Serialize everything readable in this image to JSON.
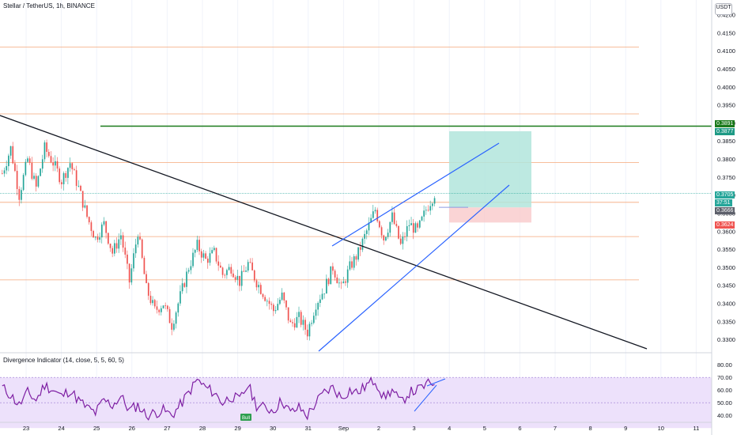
{
  "header": {
    "title": "Stellar / TetherUS, 1h, BINANCE",
    "currency": "USDT"
  },
  "indicator": {
    "title": "Divergence Indicator (14, close, 5, 5, 60, 5)",
    "bull_label": "Bull",
    "ticks": [
      "80.00",
      "70.00",
      "60.00",
      "50.00",
      "40.00"
    ],
    "band_color": "#ede1fb",
    "line_color": "#7e1fa3"
  },
  "price_axis": {
    "ticks": [
      "0.4200",
      "0.4150",
      "0.4100",
      "0.4050",
      "0.4000",
      "0.3950",
      "0.3900",
      "0.3850",
      "0.3800",
      "0.3750",
      "0.3700",
      "0.3650",
      "0.3600",
      "0.3550",
      "0.3500",
      "0.3450",
      "0.3400",
      "0.3350",
      "0.3300"
    ]
  },
  "price_tags": {
    "target_top": {
      "text": "0.3891",
      "color": "#1b7a1b"
    },
    "target": {
      "text": "0.3877",
      "color": "#1e9a85"
    },
    "last": {
      "text": "0.3705",
      "color": "#26a69a"
    },
    "countdown": {
      "text": "37:51",
      "color": "#26a69a"
    },
    "entry": {
      "text": "0.3666",
      "color": "#5d606b"
    },
    "stop": {
      "text": "0.3624",
      "color": "#ef5350"
    }
  },
  "time_axis": {
    "ticks": [
      "23",
      "24",
      "25",
      "26",
      "27",
      "28",
      "29",
      "30",
      "31",
      "Sep",
      "2",
      "3",
      "4",
      "5",
      "6",
      "7",
      "8",
      "9",
      "10",
      "11"
    ]
  },
  "chart_data": {
    "type": "candlestick",
    "symbol": "Stellar / TetherUS",
    "interval": "1h",
    "exchange": "BINANCE",
    "ylim": [
      0.3285,
      0.421
    ],
    "horizontal_levels": [
      0.411,
      0.3925,
      0.379,
      0.368,
      0.3585,
      0.3465
    ],
    "key_level": 0.3891,
    "last_price": 0.3705,
    "long_position": {
      "entry": 0.3666,
      "target": 0.3877,
      "stop": 0.3624
    },
    "price_path": [
      [
        0,
        0.376
      ],
      [
        4,
        0.383
      ],
      [
        8,
        0.37
      ],
      [
        12,
        0.38
      ],
      [
        16,
        0.372
      ],
      [
        20,
        0.383
      ],
      [
        24,
        0.379
      ],
      [
        28,
        0.374
      ],
      [
        32,
        0.379
      ],
      [
        36,
        0.372
      ],
      [
        40,
        0.364
      ],
      [
        44,
        0.358
      ],
      [
        48,
        0.362
      ],
      [
        52,
        0.354
      ],
      [
        56,
        0.359
      ],
      [
        60,
        0.346
      ],
      [
        64,
        0.36
      ],
      [
        68,
        0.344
      ],
      [
        72,
        0.338
      ],
      [
        76,
        0.34
      ],
      [
        80,
        0.334
      ],
      [
        84,
        0.342
      ],
      [
        88,
        0.35
      ],
      [
        92,
        0.356
      ],
      [
        96,
        0.352
      ],
      [
        100,
        0.354
      ],
      [
        104,
        0.348
      ],
      [
        108,
        0.35
      ],
      [
        112,
        0.346
      ],
      [
        116,
        0.351
      ],
      [
        120,
        0.346
      ],
      [
        124,
        0.342
      ],
      [
        128,
        0.338
      ],
      [
        132,
        0.342
      ],
      [
        136,
        0.334
      ],
      [
        140,
        0.336
      ],
      [
        144,
        0.332
      ],
      [
        148,
        0.34
      ],
      [
        152,
        0.344
      ],
      [
        156,
        0.35
      ],
      [
        160,
        0.344
      ],
      [
        164,
        0.35
      ],
      [
        168,
        0.354
      ],
      [
        172,
        0.36
      ],
      [
        176,
        0.366
      ],
      [
        180,
        0.358
      ],
      [
        184,
        0.364
      ],
      [
        188,
        0.356
      ],
      [
        192,
        0.362
      ],
      [
        196,
        0.36
      ],
      [
        200,
        0.366
      ],
      [
        204,
        0.3705
      ]
    ],
    "indicator_series": [
      [
        0,
        62
      ],
      [
        4,
        56
      ],
      [
        8,
        48
      ],
      [
        12,
        58
      ],
      [
        16,
        52
      ],
      [
        20,
        64
      ],
      [
        24,
        60
      ],
      [
        28,
        55
      ],
      [
        32,
        60
      ],
      [
        36,
        52
      ],
      [
        40,
        46
      ],
      [
        44,
        42
      ],
      [
        48,
        52
      ],
      [
        52,
        48
      ],
      [
        56,
        55
      ],
      [
        60,
        44
      ],
      [
        64,
        48
      ],
      [
        68,
        40
      ],
      [
        72,
        42
      ],
      [
        76,
        44
      ],
      [
        80,
        40
      ],
      [
        84,
        48
      ],
      [
        88,
        58
      ],
      [
        92,
        68
      ],
      [
        96,
        62
      ],
      [
        100,
        58
      ],
      [
        104,
        50
      ],
      [
        108,
        55
      ],
      [
        112,
        52
      ],
      [
        116,
        64
      ],
      [
        120,
        48
      ],
      [
        124,
        46
      ],
      [
        128,
        44
      ],
      [
        132,
        52
      ],
      [
        136,
        42
      ],
      [
        140,
        46
      ],
      [
        144,
        40
      ],
      [
        148,
        50
      ],
      [
        152,
        58
      ],
      [
        156,
        62
      ],
      [
        160,
        54
      ],
      [
        164,
        60
      ],
      [
        168,
        58
      ],
      [
        172,
        64
      ],
      [
        176,
        68
      ],
      [
        180,
        54
      ],
      [
        184,
        60
      ],
      [
        188,
        50
      ],
      [
        192,
        58
      ],
      [
        196,
        60
      ],
      [
        200,
        64
      ],
      [
        204,
        66
      ]
    ],
    "indicator_ylim": [
      37,
      82
    ]
  }
}
